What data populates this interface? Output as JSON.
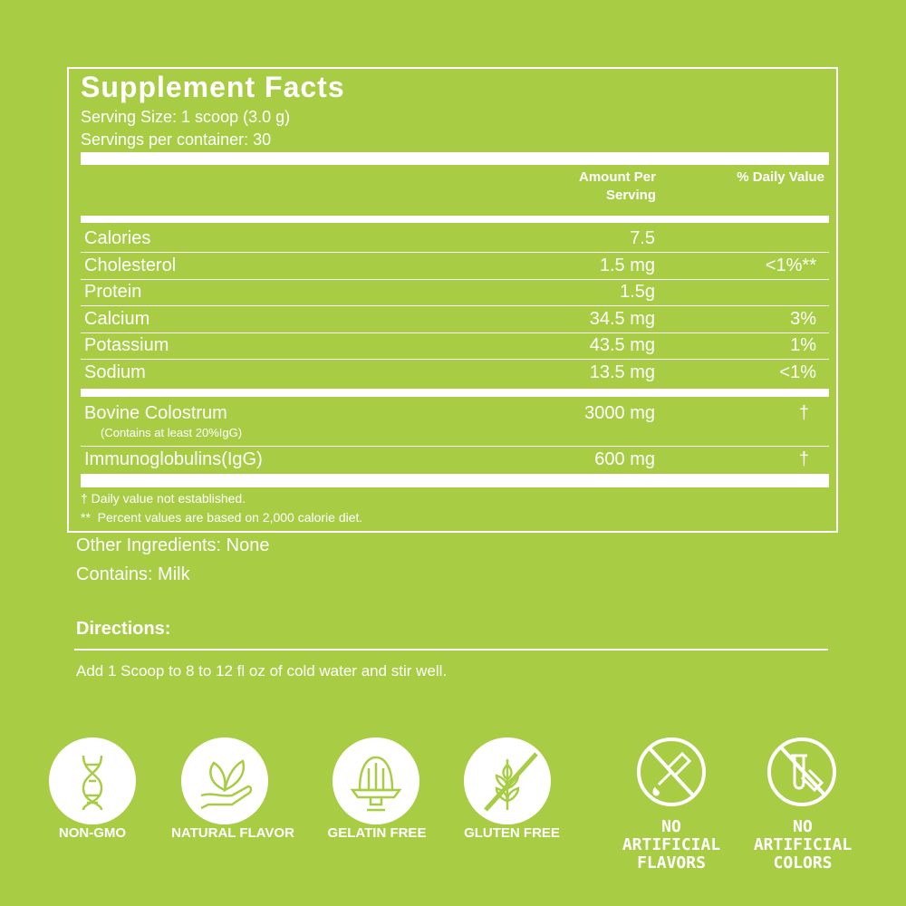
{
  "facts": {
    "title": "Supplement Facts",
    "serving_size": "Serving Size: 1 scoop (3.0 g)",
    "servings_per_container": "Servings per container: 30",
    "col_amount_1": "Amount Per",
    "col_amount_2": "Serving",
    "col_dv": "% Daily Value",
    "rows": [
      {
        "name": "Calories",
        "amount": "7.5",
        "dv": ""
      },
      {
        "name": "Cholesterol",
        "amount": "1.5 mg",
        "dv": "<1%**"
      },
      {
        "name": "Protein",
        "amount": "1.5g",
        "dv": ""
      },
      {
        "name": "Calcium",
        "amount": "34.5 mg",
        "dv": "3%"
      },
      {
        "name": "Potassium",
        "amount": "43.5 mg",
        "dv": "1%"
      },
      {
        "name": "Sodium",
        "amount": "13.5 mg",
        "dv": "<1%"
      }
    ],
    "bovine": {
      "name": "Bovine Colostrum",
      "note": "(Contains at least 20%IgG)",
      "amount": "3000 mg",
      "dv": "†"
    },
    "igg": {
      "name": "Immunoglobulins(IgG)",
      "amount": "600 mg",
      "dv": "†"
    },
    "footnote_1": "† Daily value not established.",
    "footnote_2": "**  Percent values are based on 2,000 calorie diet."
  },
  "other_ingredients": "Other Ingredients: None",
  "contains": "Contains: Milk",
  "directions": {
    "heading": "Directions:",
    "text": "Add 1 Scoop to 8 to 12 fl oz of cold water and stir well."
  },
  "badges": [
    {
      "icon": "dna-icon",
      "label": "NON-GMO"
    },
    {
      "icon": "leaf-hand-icon",
      "label": "NATURAL FLAVOR"
    },
    {
      "icon": "gelatin-icon",
      "label": "GELATIN FREE"
    },
    {
      "icon": "wheat-icon",
      "label": "GLUTEN FREE"
    },
    {
      "icon": "no-dropper-icon",
      "label_1": "NO",
      "label_2": "ARTIFICIAL",
      "label_3": "FLAVORS"
    },
    {
      "icon": "no-test-tube-icon",
      "label_1": "NO",
      "label_2": "ARTIFICIAL",
      "label_3": "COLORS"
    }
  ],
  "colors": {
    "background": "#a8cd45",
    "foreground": "#ffffff"
  }
}
